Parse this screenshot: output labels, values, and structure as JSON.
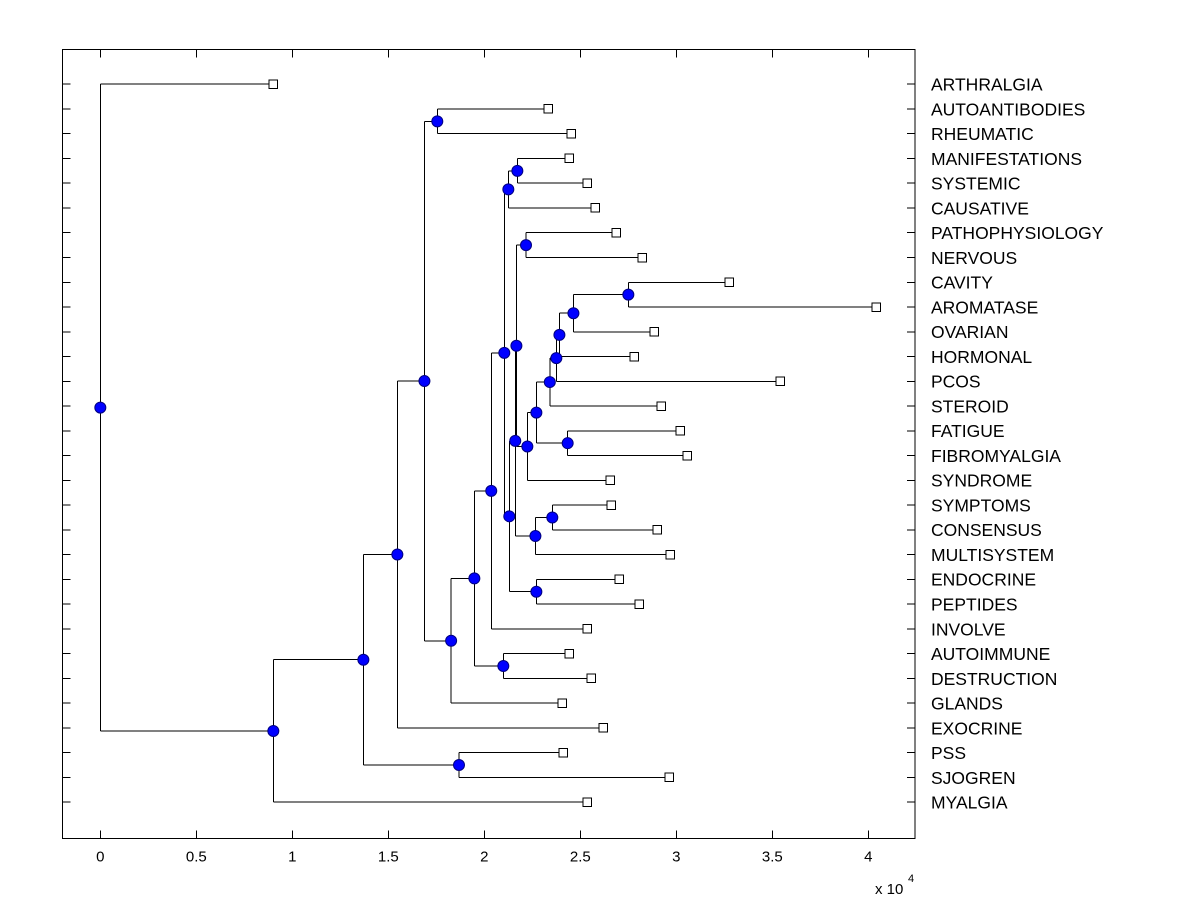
{
  "chart_data": {
    "type": "dendrogram",
    "title": "",
    "xlabel": "",
    "ylabel": "",
    "orientation": "root-left, leaves-right",
    "grid": false,
    "xlim": [
      -1960,
      42430
    ],
    "ylim": [
      -0.41,
      31.46
    ],
    "x_ticks": [
      0,
      5000,
      10000,
      15000,
      20000,
      25000,
      30000,
      35000,
      40000
    ],
    "x_tick_labels": [
      "0",
      "0.5",
      "1",
      "1.5",
      "2",
      "2.5",
      "3",
      "3.5",
      "4"
    ],
    "x_multiplier_label": {
      "base": "x 10",
      "exponent": "4"
    },
    "colors": {
      "line": "#000000",
      "internal_node_fill": "#0000FF",
      "internal_node_edge": "#000080",
      "leaf_fill": "#FFFFFF",
      "leaf_edge": "#000000"
    },
    "leaves": [
      {
        "label": "ARTHRALGIA",
        "x": 9010
      },
      {
        "label": "AUTOANTIBODIES",
        "x": 23330
      },
      {
        "label": "RHEUMATIC",
        "x": 24530
      },
      {
        "label": "MANIFESTATIONS",
        "x": 24430
      },
      {
        "label": "SYSTEMIC",
        "x": 25360
      },
      {
        "label": "CAUSATIVE",
        "x": 25780
      },
      {
        "label": "PATHOPHYSIOLOGY",
        "x": 26880
      },
      {
        "label": "NERVOUS",
        "x": 28230
      },
      {
        "label": "CAVITY",
        "x": 32760
      },
      {
        "label": "AROMATASE",
        "x": 40420
      },
      {
        "label": "OVARIAN",
        "x": 28850
      },
      {
        "label": "HORMONAL",
        "x": 27810
      },
      {
        "label": "PCOS",
        "x": 35420
      },
      {
        "label": "STEROID",
        "x": 29220
      },
      {
        "label": "FATIGUE",
        "x": 30210
      },
      {
        "label": "FIBROMYALGIA",
        "x": 30570
      },
      {
        "label": "SYNDROME",
        "x": 26560
      },
      {
        "label": "SYMPTOMS",
        "x": 26610
      },
      {
        "label": "CONSENSUS",
        "x": 29010
      },
      {
        "label": "MULTISYSTEM",
        "x": 29690
      },
      {
        "label": "ENDOCRINE",
        "x": 27030
      },
      {
        "label": "PEPTIDES",
        "x": 28070
      },
      {
        "label": "INVOLVE",
        "x": 25360
      },
      {
        "label": "AUTOIMMUNE",
        "x": 24430
      },
      {
        "label": "DESTRUCTION",
        "x": 25570
      },
      {
        "label": "GLANDS",
        "x": 24060
      },
      {
        "label": "EXOCRINE",
        "x": 26200
      },
      {
        "label": "PSS",
        "x": 24110
      },
      {
        "label": "SJOGREN",
        "x": 29640
      },
      {
        "label": "MYALGIA",
        "x": 25360
      }
    ],
    "nodes": [
      {
        "id": "n0",
        "x": 0,
        "children": [
          "ARTHRALGIA",
          "n1"
        ]
      },
      {
        "id": "n1",
        "x": 9010,
        "children": [
          "n2",
          "MYALGIA"
        ]
      },
      {
        "id": "n2",
        "x": 13700,
        "children": [
          "n3",
          "n_sj"
        ]
      },
      {
        "id": "n_sj",
        "x": 18680,
        "children": [
          "PSS",
          "SJOGREN"
        ]
      },
      {
        "id": "n3",
        "x": 15470,
        "children": [
          "n4",
          "EXOCRINE"
        ]
      },
      {
        "id": "n4",
        "x": 16880,
        "children": [
          "n_ar",
          "n5"
        ]
      },
      {
        "id": "n_ar",
        "x": 17550,
        "children": [
          "AUTOANTIBODIES",
          "RHEUMATIC"
        ]
      },
      {
        "id": "n5",
        "x": 18270,
        "children": [
          "n6",
          "GLANDS"
        ]
      },
      {
        "id": "n6",
        "x": 19480,
        "children": [
          "n7",
          "n_ad"
        ]
      },
      {
        "id": "n_ad",
        "x": 20990,
        "children": [
          "AUTOIMMUNE",
          "DESTRUCTION"
        ]
      },
      {
        "id": "n7",
        "x": 20360,
        "children": [
          "n8",
          "INVOLVE"
        ]
      },
      {
        "id": "n8",
        "x": 21040,
        "children": [
          "n_msc",
          "n9"
        ]
      },
      {
        "id": "n_msc",
        "x": 21250,
        "children": [
          "n_ms",
          "CAUSATIVE"
        ]
      },
      {
        "id": "n_ms",
        "x": 21720,
        "children": [
          "MANIFESTATIONS",
          "SYSTEMIC"
        ]
      },
      {
        "id": "n9",
        "x": 21300,
        "children": [
          "n10",
          "n_ep"
        ]
      },
      {
        "id": "n_ep",
        "x": 22710,
        "children": [
          "ENDOCRINE",
          "PEPTIDES"
        ]
      },
      {
        "id": "n10",
        "x": 21610,
        "children": [
          "n11",
          "n_scm"
        ]
      },
      {
        "id": "n_scm",
        "x": 22660,
        "children": [
          "n_sc",
          "MULTISYSTEM"
        ]
      },
      {
        "id": "n_sc",
        "x": 23540,
        "children": [
          "SYMPTOMS",
          "CONSENSUS"
        ]
      },
      {
        "id": "n11",
        "x": 21670,
        "children": [
          "n_pn",
          "n12"
        ]
      },
      {
        "id": "n_pn",
        "x": 22170,
        "children": [
          "PATHOPHYSIOLOGY",
          "NERVOUS"
        ]
      },
      {
        "id": "n12",
        "x": 22240,
        "children": [
          "n13",
          "SYNDROME"
        ]
      },
      {
        "id": "n13",
        "x": 22710,
        "children": [
          "n14",
          "n_ff"
        ]
      },
      {
        "id": "n_ff",
        "x": 24340,
        "children": [
          "FATIGUE",
          "FIBROMYALGIA"
        ]
      },
      {
        "id": "n14",
        "x": 23410,
        "children": [
          "n15",
          "STEROID"
        ]
      },
      {
        "id": "n15",
        "x": 23750,
        "children": [
          "n16",
          "PCOS"
        ]
      },
      {
        "id": "n16",
        "x": 23910,
        "children": [
          "n17",
          "HORMONAL"
        ]
      },
      {
        "id": "n17",
        "x": 24640,
        "children": [
          "n18",
          "OVARIAN"
        ]
      },
      {
        "id": "n18",
        "x": 27500,
        "children": [
          "CAVITY",
          "AROMATASE"
        ]
      }
    ]
  }
}
